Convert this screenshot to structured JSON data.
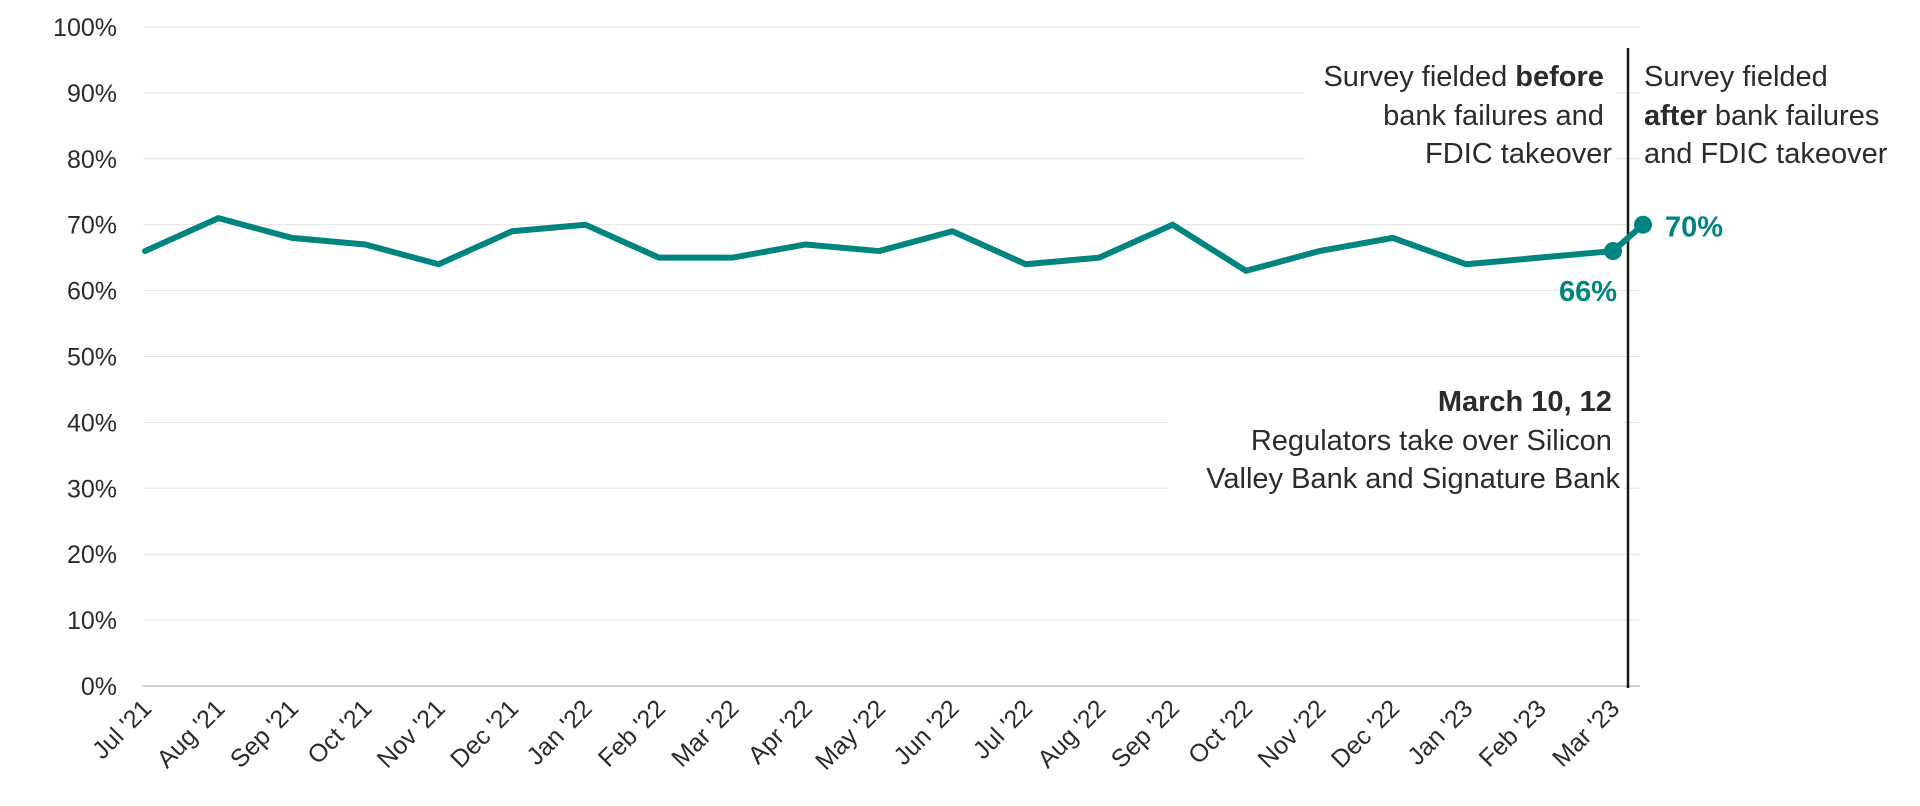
{
  "chart_data": {
    "type": "line",
    "title": "",
    "xlabel": "",
    "ylabel": "",
    "ylim": [
      0,
      100
    ],
    "yticks": [
      "0%",
      "10%",
      "20%",
      "30%",
      "40%",
      "50%",
      "60%",
      "70%",
      "80%",
      "90%",
      "100%"
    ],
    "categories": [
      "Jul '21",
      "Aug '21",
      "Sep '21",
      "Oct '21",
      "Nov '21",
      "Dec '21",
      "Jan '22",
      "Feb '22",
      "Mar '22",
      "Apr '22",
      "May '22",
      "Jun '22",
      "Jul '22",
      "Aug '22",
      "Sep '22",
      "Oct '22",
      "Nov '22",
      "Dec '22",
      "Jan '23",
      "Feb '23",
      "Mar '23"
    ],
    "series": [
      {
        "values": [
          66,
          71,
          68,
          67,
          64,
          69,
          70,
          65,
          65,
          67,
          66,
          69,
          64,
          65,
          70,
          63,
          66,
          68,
          64,
          65,
          66
        ],
        "end_point": {
          "category": "Mar '23",
          "value": 70
        },
        "color": "#00847f"
      }
    ],
    "data_labels": {
      "before": "66%",
      "after": "70%"
    },
    "grid": true,
    "annotations": {
      "before": {
        "line1_pre": "Survey fielded ",
        "line1_bold": "before",
        "line2": "bank failures and",
        "line3": "FDIC takeover"
      },
      "after": {
        "line1": "Survey fielded",
        "line2_bold": "after",
        "line2_post": " bank failures",
        "line3": "and FDIC takeover"
      },
      "event": {
        "title": "March 10, 12",
        "line1": "Regulators take over Silicon",
        "line2": "Valley Bank and Signature Bank"
      }
    }
  }
}
